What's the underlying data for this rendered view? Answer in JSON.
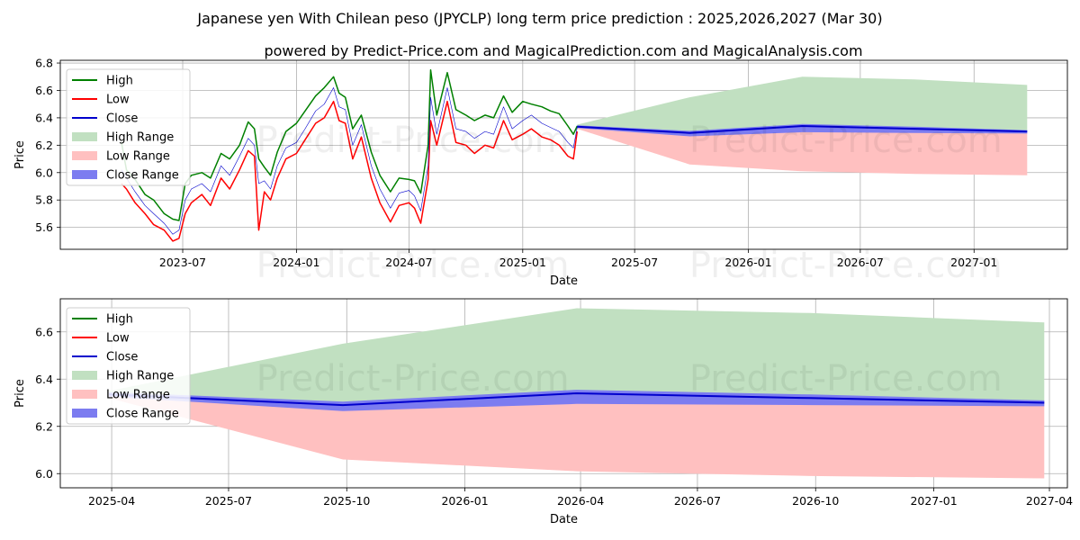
{
  "page": {
    "title": "Japanese yen With Chilean peso (JPYCLP) long term price prediction : 2025,2026,2027 (Mar 30)",
    "subtitle": "powered by Predict-Price.com and MagicalPrediction.com and MagicalAnalysis.com",
    "watermark": "Predict-Price.com"
  },
  "colors": {
    "high": "#008000",
    "low": "#ff0000",
    "close": "#0000cc",
    "high_range": "#c1e0c1",
    "low_range": "#ffc0c0",
    "close_range": "#7c7cf0",
    "grid": "#b0b0b0"
  },
  "chart_data": [
    {
      "type": "line",
      "xlabel": "Date",
      "ylabel": "Price",
      "xlim": [
        "2022-12-15",
        "2027-06-01"
      ],
      "ylim": [
        5.44,
        6.82
      ],
      "yticks": [
        5.6,
        5.8,
        6.0,
        6.2,
        6.4,
        6.6,
        6.8
      ],
      "xticks": [
        {
          "date": "2023-07-01",
          "label": "2023-07"
        },
        {
          "date": "2024-01-01",
          "label": "2024-01"
        },
        {
          "date": "2024-07-01",
          "label": "2024-07"
        },
        {
          "date": "2025-01-01",
          "label": "2025-01"
        },
        {
          "date": "2025-07-01",
          "label": "2025-07"
        },
        {
          "date": "2026-01-01",
          "label": "2026-01"
        },
        {
          "date": "2026-07-01",
          "label": "2026-07"
        },
        {
          "date": "2027-01-01",
          "label": "2027-01"
        }
      ],
      "legend": {
        "position": "upper-left",
        "entries": [
          "High",
          "Low",
          "Close",
          "High Range",
          "Low Range",
          "Close Range"
        ]
      },
      "history": {
        "dates": [
          "2023-03-24",
          "2023-04-01",
          "2023-04-15",
          "2023-05-01",
          "2023-05-15",
          "2023-06-01",
          "2023-06-15",
          "2023-06-25",
          "2023-07-05",
          "2023-07-15",
          "2023-08-01",
          "2023-08-15",
          "2023-09-01",
          "2023-09-15",
          "2023-10-01",
          "2023-10-15",
          "2023-10-25",
          "2023-11-01",
          "2023-11-10",
          "2023-11-20",
          "2023-12-01",
          "2023-12-15",
          "2024-01-01",
          "2024-01-15",
          "2024-02-01",
          "2024-02-15",
          "2024-03-01",
          "2024-03-10",
          "2024-03-20",
          "2024-04-01",
          "2024-04-15",
          "2024-05-01",
          "2024-05-15",
          "2024-06-01",
          "2024-06-15",
          "2024-07-01",
          "2024-07-10",
          "2024-07-20",
          "2024-08-01",
          "2024-08-05",
          "2024-08-15",
          "2024-09-01",
          "2024-09-15",
          "2024-10-01",
          "2024-10-15",
          "2024-11-01",
          "2024-11-15",
          "2024-12-01",
          "2024-12-15",
          "2025-01-01",
          "2025-01-15",
          "2025-02-01",
          "2025-02-15",
          "2025-03-01",
          "2025-03-15",
          "2025-03-24",
          "2025-03-30"
        ],
        "close": [
          6.02,
          5.96,
          5.86,
          5.76,
          5.7,
          5.63,
          5.55,
          5.58,
          5.8,
          5.88,
          5.92,
          5.86,
          6.05,
          5.98,
          6.12,
          6.25,
          6.2,
          5.92,
          5.94,
          5.88,
          6.05,
          6.18,
          6.22,
          6.32,
          6.45,
          6.5,
          6.62,
          6.48,
          6.46,
          6.2,
          6.35,
          6.05,
          5.88,
          5.74,
          5.85,
          5.87,
          5.83,
          5.72,
          6.05,
          6.55,
          6.28,
          6.62,
          6.32,
          6.3,
          6.25,
          6.3,
          6.28,
          6.48,
          6.32,
          6.38,
          6.42,
          6.36,
          6.33,
          6.3,
          6.22,
          6.18,
          6.33
        ],
        "high": [
          6.22,
          6.02,
          5.95,
          5.84,
          5.8,
          5.7,
          5.66,
          5.65,
          5.92,
          5.98,
          6.0,
          5.96,
          6.14,
          6.1,
          6.2,
          6.37,
          6.32,
          6.1,
          6.04,
          5.98,
          6.15,
          6.3,
          6.36,
          6.45,
          6.56,
          6.62,
          6.7,
          6.58,
          6.55,
          6.32,
          6.42,
          6.15,
          5.98,
          5.86,
          5.96,
          5.95,
          5.94,
          5.85,
          6.2,
          6.75,
          6.42,
          6.73,
          6.46,
          6.42,
          6.38,
          6.42,
          6.4,
          6.56,
          6.44,
          6.52,
          6.5,
          6.48,
          6.45,
          6.43,
          6.34,
          6.28,
          6.34
        ],
        "low": [
          5.92,
          5.88,
          5.78,
          5.7,
          5.62,
          5.58,
          5.5,
          5.52,
          5.7,
          5.78,
          5.84,
          5.76,
          5.96,
          5.88,
          6.02,
          6.16,
          6.12,
          5.58,
          5.86,
          5.8,
          5.96,
          6.1,
          6.14,
          6.24,
          6.36,
          6.4,
          6.52,
          6.38,
          6.36,
          6.1,
          6.26,
          5.96,
          5.78,
          5.64,
          5.76,
          5.78,
          5.74,
          5.63,
          5.95,
          6.38,
          6.2,
          6.52,
          6.22,
          6.2,
          6.14,
          6.2,
          6.18,
          6.38,
          6.24,
          6.28,
          6.32,
          6.26,
          6.24,
          6.2,
          6.12,
          6.1,
          6.3
        ]
      },
      "forecast": {
        "dates": [
          "2025-03-30",
          "2025-09-28",
          "2026-03-29",
          "2026-09-27",
          "2027-03-28"
        ],
        "close": [
          6.335,
          6.29,
          6.34,
          6.32,
          6.3
        ],
        "high_range": [
          6.35,
          6.55,
          6.7,
          6.68,
          6.64
        ],
        "low_range": [
          6.32,
          6.06,
          6.01,
          5.99,
          5.98
        ],
        "close_range_upper": [
          6.345,
          6.305,
          6.355,
          6.335,
          6.31
        ],
        "close_range_lower": [
          6.325,
          6.265,
          6.295,
          6.29,
          6.285
        ]
      }
    },
    {
      "type": "line",
      "xlabel": "Date",
      "ylabel": "Price",
      "xlim": [
        "2025-02-20",
        "2027-04-15"
      ],
      "ylim": [
        5.94,
        6.74
      ],
      "yticks": [
        6.0,
        6.2,
        6.4,
        6.6
      ],
      "xticks": [
        {
          "date": "2025-04-01",
          "label": "2025-04"
        },
        {
          "date": "2025-07-01",
          "label": "2025-07"
        },
        {
          "date": "2025-10-01",
          "label": "2025-10"
        },
        {
          "date": "2026-01-01",
          "label": "2026-01"
        },
        {
          "date": "2026-04-01",
          "label": "2026-04"
        },
        {
          "date": "2026-07-01",
          "label": "2026-07"
        },
        {
          "date": "2026-10-01",
          "label": "2026-10"
        },
        {
          "date": "2027-01-01",
          "label": "2027-01"
        },
        {
          "date": "2027-04-01",
          "label": "2027-04"
        }
      ],
      "legend": {
        "position": "upper-left",
        "entries": [
          "High",
          "Low",
          "Close",
          "High Range",
          "Low Range",
          "Close Range"
        ]
      },
      "forecast": {
        "dates": [
          "2025-03-30",
          "2025-09-28",
          "2026-03-29",
          "2026-09-27",
          "2027-03-28"
        ],
        "close": [
          6.335,
          6.29,
          6.34,
          6.32,
          6.3
        ],
        "high_range": [
          6.35,
          6.55,
          6.7,
          6.68,
          6.64
        ],
        "low_range": [
          6.32,
          6.06,
          6.01,
          5.99,
          5.98
        ],
        "close_range_upper": [
          6.345,
          6.305,
          6.355,
          6.335,
          6.31
        ],
        "close_range_lower": [
          6.325,
          6.265,
          6.295,
          6.29,
          6.285
        ]
      }
    }
  ]
}
